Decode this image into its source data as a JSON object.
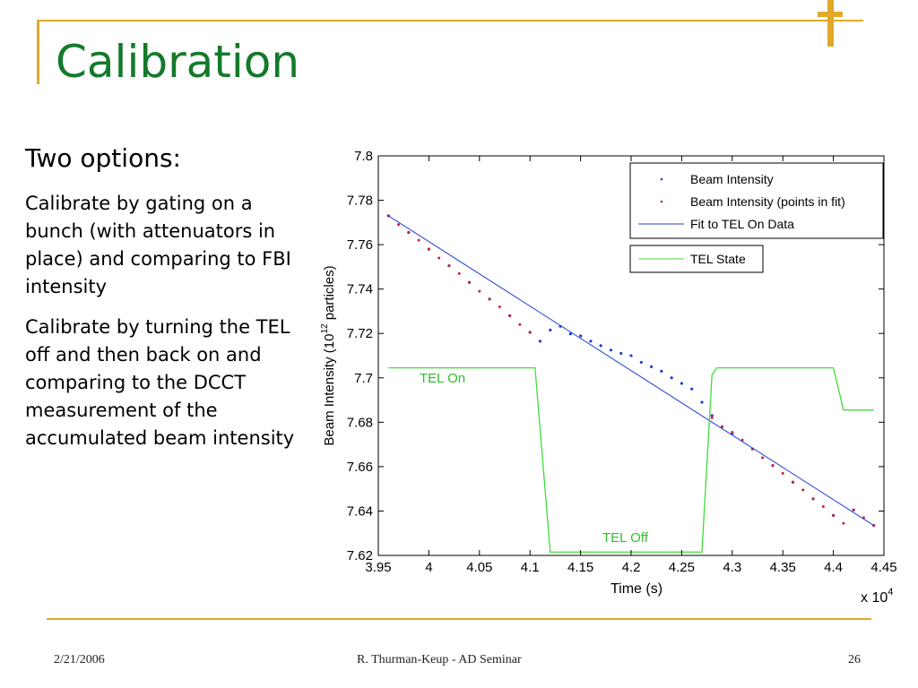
{
  "slide": {
    "title": "Calibration",
    "heading": "Two options:",
    "paragraphs": [
      "Calibrate by gating on a bunch (with attenuators in place) and comparing to FBI intensity",
      "Calibrate by turning the TEL off and then back on and comparing to the DCCT measurement of the accumulated beam intensity"
    ],
    "footer": {
      "date": "2/21/2006",
      "center": "R. Thurman-Keup  -  AD Seminar",
      "page": "26"
    }
  },
  "colors": {
    "accent": "#e0a92a",
    "title": "#137a2b",
    "beam_points": "#1f3fd6",
    "fit_points": "#cc1f3a",
    "fit_line": "#1f3fd6",
    "tel_state": "#3ddc3d"
  },
  "chart_data": {
    "type": "line",
    "xlabel": "Time (s)",
    "x_multiplier": "x 10",
    "x_multiplier_exp": "4",
    "ylabel_main": "Beam Intensity (10",
    "ylabel_exp": "12",
    "ylabel_tail": " particles)",
    "xlim": [
      3.95,
      4.45
    ],
    "ylim": [
      7.62,
      7.8
    ],
    "x_ticks": [
      "3.95",
      "4",
      "4.05",
      "4.1",
      "4.15",
      "4.2",
      "4.25",
      "4.3",
      "4.35",
      "4.4",
      "4.45"
    ],
    "y_ticks": [
      "7.62",
      "7.64",
      "7.66",
      "7.68",
      "7.7",
      "7.72",
      "7.74",
      "7.76",
      "7.78",
      "7.8"
    ],
    "legend": {
      "placement": "top-right",
      "entries": [
        "Beam Intensity",
        "Beam Intensity (points in fit)",
        "Fit to TEL On Data"
      ],
      "tel_entry": "TEL State"
    },
    "annotations": {
      "tel_on": "TEL On",
      "tel_off": "TEL Off"
    },
    "series": [
      {
        "name": "Beam Intensity",
        "style": "dots",
        "x": [
          3.96,
          3.98,
          4.0,
          4.02,
          4.04,
          4.06,
          4.08,
          4.1,
          4.11,
          4.12,
          4.13,
          4.14,
          4.15,
          4.16,
          4.17,
          4.18,
          4.19,
          4.2,
          4.21,
          4.22,
          4.23,
          4.24,
          4.25,
          4.26,
          4.27,
          4.28,
          4.29,
          4.3,
          4.32,
          4.34,
          4.36,
          4.38,
          4.4,
          4.42,
          4.44
        ],
        "y": [
          7.773,
          7.7655,
          7.758,
          7.7505,
          7.743,
          7.7355,
          7.728,
          7.7205,
          7.7165,
          7.7215,
          7.7232,
          7.7198,
          7.7189,
          7.7165,
          7.7145,
          7.7125,
          7.711,
          7.71,
          7.707,
          7.705,
          7.703,
          7.7,
          7.6975,
          7.695,
          7.689,
          7.683,
          7.678,
          7.675,
          7.668,
          7.6605,
          7.653,
          7.6455,
          7.638,
          7.6405,
          7.6335
        ]
      },
      {
        "name": "Beam Intensity (points in fit)",
        "style": "dots",
        "x": [
          3.96,
          3.97,
          3.98,
          3.99,
          4.0,
          4.01,
          4.02,
          4.03,
          4.04,
          4.05,
          4.06,
          4.07,
          4.08,
          4.09,
          4.1,
          4.28,
          4.29,
          4.3,
          4.31,
          4.32,
          4.33,
          4.34,
          4.35,
          4.36,
          4.37,
          4.38,
          4.39,
          4.4,
          4.41,
          4.42,
          4.43,
          4.44
        ],
        "y": [
          7.773,
          7.769,
          7.7655,
          7.762,
          7.758,
          7.754,
          7.7505,
          7.747,
          7.743,
          7.739,
          7.7355,
          7.732,
          7.728,
          7.724,
          7.7205,
          7.682,
          7.678,
          7.6755,
          7.672,
          7.668,
          7.664,
          7.6605,
          7.657,
          7.653,
          7.6495,
          7.6455,
          7.642,
          7.638,
          7.6345,
          7.6405,
          7.637,
          7.6335
        ]
      },
      {
        "name": "Fit to TEL On Data",
        "style": "line",
        "x": [
          3.96,
          4.44
        ],
        "y": [
          7.773,
          7.6335
        ]
      },
      {
        "name": "TEL State",
        "style": "line",
        "axis": "state",
        "x": [
          3.96,
          4.105,
          4.12,
          4.27,
          4.28,
          4.285,
          4.4,
          4.41,
          4.44
        ],
        "y": [
          7.7045,
          7.7045,
          7.6215,
          7.6215,
          7.7015,
          7.7045,
          7.7045,
          7.6855,
          7.6855
        ]
      }
    ]
  }
}
